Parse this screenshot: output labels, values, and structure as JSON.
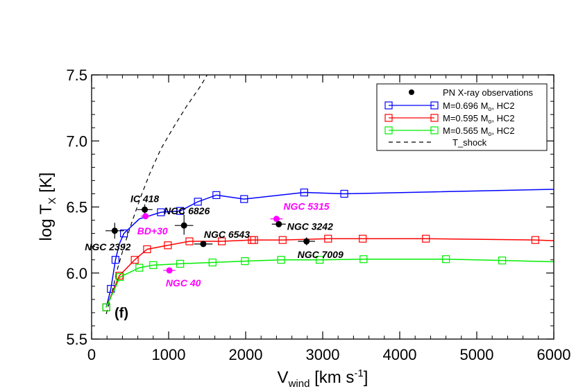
{
  "chart_data": {
    "type": "line",
    "panel_label": "(f)",
    "xaxis": {
      "label_main": "V",
      "label_sub": "wind",
      "label_tail": " [km s",
      "label_sup": "-1",
      "label_end": "]",
      "xlim": [
        0,
        6000
      ],
      "ticks": [
        0,
        1000,
        2000,
        3000,
        4000,
        5000,
        6000
      ],
      "tick_labels": [
        "0",
        "1000",
        "2000",
        "3000",
        "4000",
        "5000",
        "6000"
      ]
    },
    "yaxis": {
      "label_main": "log T",
      "label_sub": "X",
      "label_tail": " [K]",
      "ylim": [
        5.5,
        7.5
      ],
      "ticks": [
        5.5,
        6.0,
        6.5,
        7.0,
        7.5
      ],
      "tick_labels": [
        "5.5",
        "6.0",
        "6.5",
        "7.0",
        "7.5"
      ]
    },
    "legend": {
      "placement": "top-right",
      "entries": [
        {
          "key": "obs",
          "text": "PN X-ray observations",
          "sub": ""
        },
        {
          "key": "blue",
          "text": "M=0.696 M",
          "sub": "o",
          "tail": ",   HC2"
        },
        {
          "key": "red",
          "text": "M=0.595 M",
          "sub": "o",
          "tail": ",   HC2"
        },
        {
          "key": "green",
          "text": "M=0.565 M",
          "sub": "o",
          "tail": ",   HC2"
        },
        {
          "key": "shock",
          "text": "T_shock",
          "sub": ""
        }
      ]
    },
    "series": [
      {
        "key": "blue",
        "color": "#0000ff",
        "x": [
          190,
          250,
          310,
          360,
          420,
          620,
          900,
          1150,
          1380,
          1620,
          1980,
          2760,
          3280,
          7300
        ],
        "y": [
          5.74,
          5.88,
          6.1,
          6.22,
          6.3,
          6.41,
          6.46,
          6.47,
          6.54,
          6.59,
          6.56,
          6.61,
          6.6,
          6.65
        ],
        "markers": [
          true,
          true,
          true,
          false,
          true,
          false,
          true,
          true,
          true,
          true,
          true,
          true,
          true,
          false
        ]
      },
      {
        "key": "red",
        "color": "#ff0000",
        "x": [
          190,
          360,
          560,
          720,
          990,
          1270,
          1690,
          2080,
          2110,
          2480,
          3070,
          3520,
          4340,
          5760,
          6000
        ],
        "y": [
          5.74,
          5.98,
          6.1,
          6.18,
          6.21,
          6.24,
          6.24,
          6.25,
          6.25,
          6.25,
          6.26,
          6.26,
          6.26,
          6.25,
          6.245
        ],
        "markers": [
          true,
          true,
          true,
          true,
          true,
          true,
          true,
          true,
          true,
          true,
          true,
          true,
          true,
          true,
          false
        ]
      },
      {
        "key": "green",
        "color": "#00ee00",
        "x": [
          190,
          370,
          620,
          800,
          1150,
          1570,
          1990,
          2460,
          2960,
          3530,
          4600,
          5330,
          6000
        ],
        "y": [
          5.74,
          5.97,
          6.04,
          6.06,
          6.07,
          6.08,
          6.09,
          6.1,
          6.1,
          6.105,
          6.105,
          6.095,
          6.085
        ],
        "markers": [
          true,
          true,
          true,
          true,
          true,
          true,
          true,
          true,
          true,
          true,
          true,
          true,
          false
        ]
      }
    ],
    "t_shock": {
      "x": [
        190,
        260,
        330,
        420,
        520,
        640,
        760,
        900,
        1060,
        1230,
        1420,
        1500
      ],
      "y": [
        5.69,
        5.84,
        6.02,
        6.2,
        6.38,
        6.58,
        6.76,
        6.94,
        7.1,
        7.26,
        7.42,
        7.5
      ]
    },
    "observations": [
      {
        "name": "NGC 2392",
        "x": 300,
        "y": 6.32,
        "xerr": 120,
        "yerr": [
          0.06,
          0.06
        ],
        "color": "#000000",
        "label_color": "#000000"
      },
      {
        "name": "IC 418",
        "x": 690,
        "y": 6.48,
        "xerr": 100,
        "yerr": [
          0.03,
          0.04
        ],
        "color": "#000000",
        "label_color": "#000000"
      },
      {
        "name": "BD+30",
        "x": 700,
        "y": 6.43,
        "xerr": 60,
        "yerr": [
          0.0,
          0.0
        ],
        "color": "#ff00ff",
        "label_color": "#ff00ff"
      },
      {
        "name": "NGC 6826",
        "x": 1200,
        "y": 6.36,
        "xerr": 120,
        "yerr": [
          0.07,
          0.08
        ],
        "color": "#000000",
        "label_color": "#000000"
      },
      {
        "name": "NGC 6543",
        "x": 1450,
        "y": 6.22,
        "xerr": 120,
        "yerr": [
          0.02,
          0.02
        ],
        "color": "#000000",
        "label_color": "#000000"
      },
      {
        "name": "NGC 5315",
        "x": 2400,
        "y": 6.41,
        "xerr": 80,
        "yerr": [
          0.02,
          0.02
        ],
        "color": "#ff00ff",
        "label_color": "#ff00ff"
      },
      {
        "name": "NGC 3242",
        "x": 2430,
        "y": 6.37,
        "xerr": 90,
        "yerr": [
          0.02,
          0.02
        ],
        "color": "#000000",
        "label_color": "#000000"
      },
      {
        "name": "NGC 7009",
        "x": 2790,
        "y": 6.24,
        "xerr": 110,
        "yerr": [
          0.03,
          0.03
        ],
        "color": "#000000",
        "label_color": "#000000"
      },
      {
        "name": "NGC 40",
        "x": 1010,
        "y": 6.02,
        "xerr": 80,
        "yerr": [
          0.0,
          0.0
        ],
        "color": "#ff00ff",
        "label_color": "#ff00ff"
      }
    ]
  }
}
